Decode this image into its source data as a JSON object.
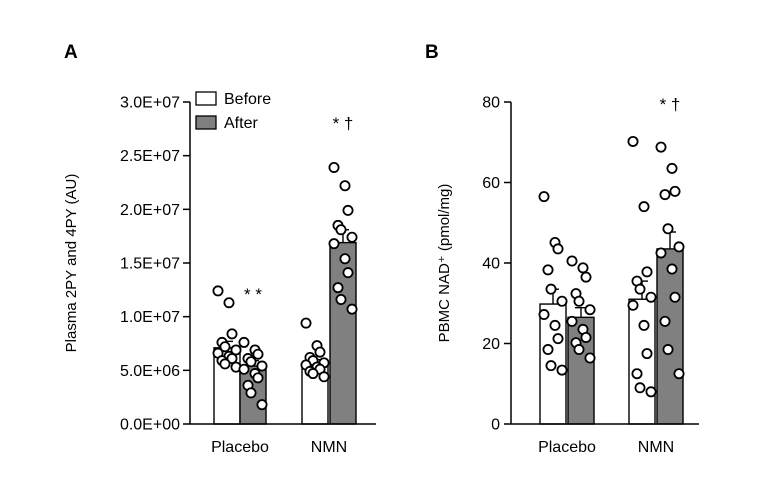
{
  "chart_data": [
    {
      "panel_label": "A",
      "type": "bar",
      "ylabel": "Plasma 2PY and 4PY (AU)",
      "ylim": [
        0,
        30000000
      ],
      "ytick_labels": [
        "0.0E+00",
        "5.0E+06",
        "1.0E+07",
        "1.5E+07",
        "2.0E+07",
        "2.5E+07",
        "3.0E+07"
      ],
      "yticks": [
        0,
        5000000,
        10000000,
        15000000,
        20000000,
        25000000,
        30000000
      ],
      "categories": [
        "Placebo",
        "NMN"
      ],
      "legend": {
        "placement": "top-left",
        "entries": [
          "Before",
          "After"
        ]
      },
      "series": [
        {
          "name": "Before",
          "color": "#ffffff",
          "values": [
            7100000,
            5600000
          ],
          "sem": [
            600000,
            400000
          ],
          "points": [
            [
              12400000,
              11300000,
              8400000,
              7600000,
              7200000,
              6900000,
              6600000,
              6300000,
              6100000,
              5900000,
              5600000,
              5300000
            ],
            [
              9400000,
              7300000,
              6700000,
              6200000,
              5900000,
              5700000,
              5500000,
              5300000,
              5100000,
              4900000,
              4700000,
              4400000
            ]
          ]
        },
        {
          "name": "After",
          "color": "#808080",
          "values": [
            5400000,
            16900000
          ],
          "sem": [
            500000,
            1200000
          ],
          "points": [
            [
              7600000,
              6900000,
              6500000,
              6100000,
              5800000,
              5400000,
              5100000,
              4700000,
              4300000,
              3600000,
              2900000,
              1800000
            ],
            [
              23900000,
              22200000,
              19900000,
              18500000,
              18100000,
              17400000,
              16800000,
              15400000,
              14100000,
              12700000,
              11600000,
              10700000
            ]
          ]
        }
      ],
      "annotations": [
        {
          "category": "Placebo",
          "series": "After",
          "text": "* *"
        },
        {
          "category": "NMN",
          "series": "After",
          "text": "* †"
        }
      ]
    },
    {
      "panel_label": "B",
      "type": "bar",
      "ylabel": "PBMC NAD⁺ (pmol/mg)",
      "ylim": [
        0,
        80
      ],
      "ytick_labels": [
        "0",
        "20",
        "40",
        "60",
        "80"
      ],
      "yticks": [
        0,
        20,
        40,
        60,
        80
      ],
      "categories": [
        "Placebo",
        "NMN"
      ],
      "series": [
        {
          "name": "Before",
          "color": "#ffffff",
          "values": [
            29.8,
            31.0
          ],
          "sem": [
            3.7,
            4.5
          ],
          "points": [
            [
              56.5,
              45.1,
              43.5,
              38.3,
              33.5,
              30.5,
              27.2,
              24.5,
              21.2,
              18.5,
              14.5,
              13.4
            ],
            [
              70.2,
              54.0,
              37.8,
              35.5,
              33.5,
              31.5,
              29.5,
              24.5,
              17.5,
              12.5,
              9.0,
              8.0
            ]
          ]
        },
        {
          "name": "After",
          "color": "#808080",
          "values": [
            26.5,
            43.5
          ],
          "sem": [
            2.4,
            4.2
          ],
          "points": [
            [
              40.5,
              38.8,
              36.5,
              32.4,
              30.5,
              28.4,
              25.5,
              23.5,
              21.5,
              20.2,
              18.5,
              16.4
            ],
            [
              68.8,
              63.5,
              57.8,
              57.0,
              48.5,
              44.0,
              42.5,
              38.5,
              31.5,
              25.5,
              18.5,
              12.5
            ]
          ]
        }
      ],
      "annotations": [
        {
          "category": "NMN",
          "series": "After",
          "text": "* †"
        }
      ]
    }
  ]
}
